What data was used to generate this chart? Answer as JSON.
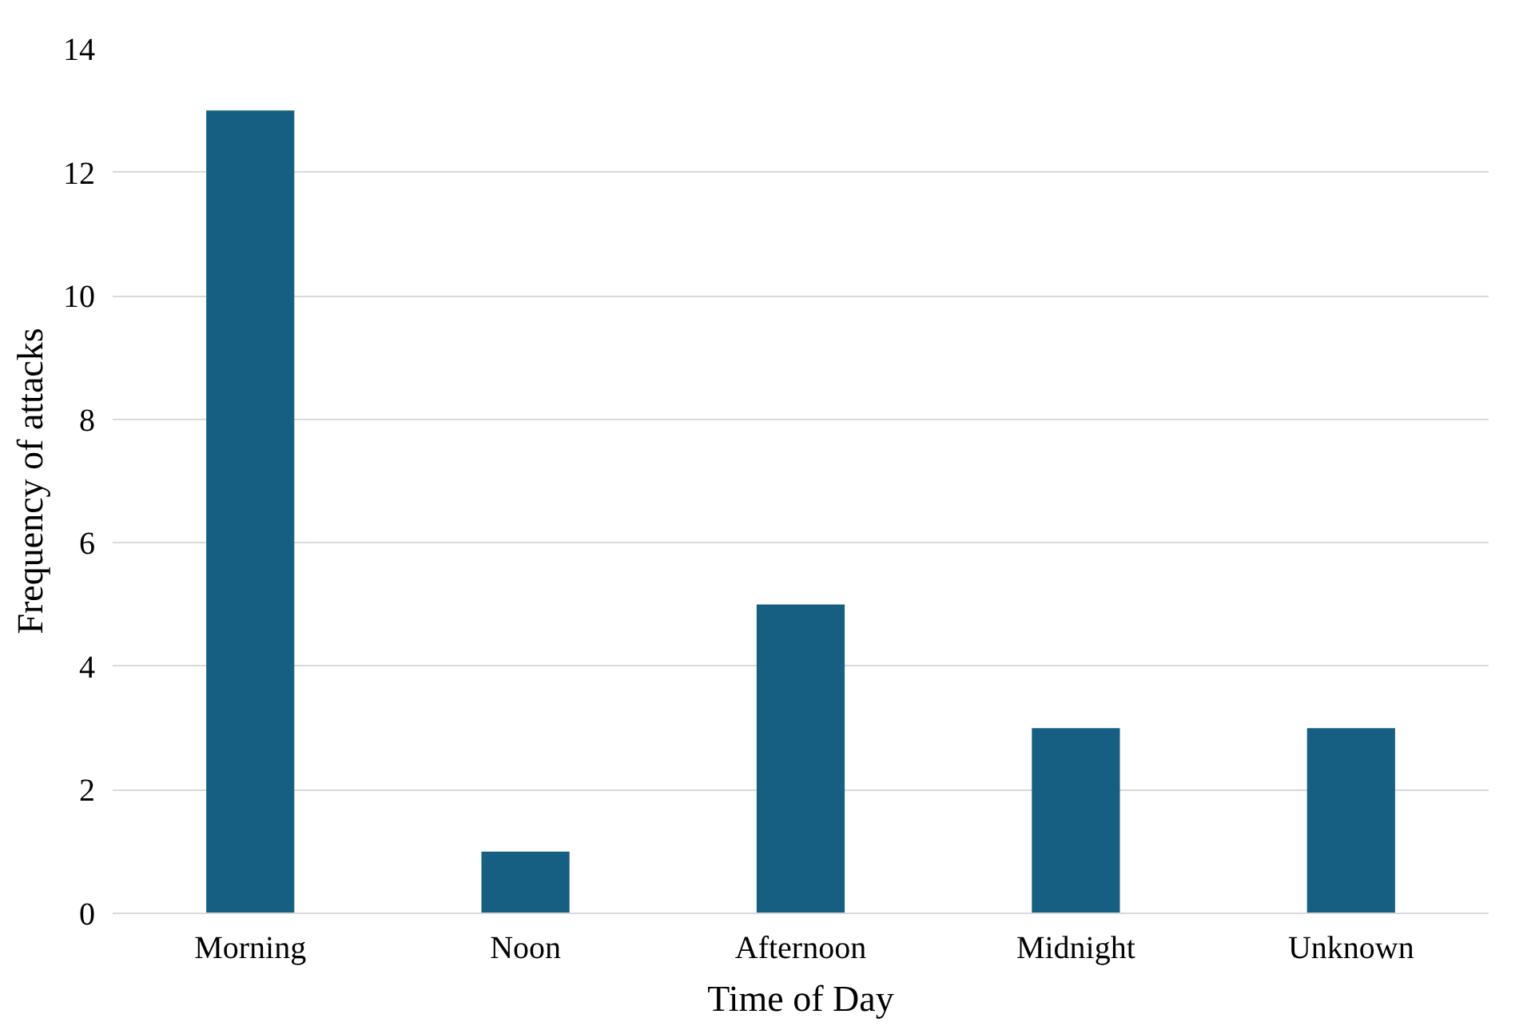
{
  "chart_data": {
    "type": "bar",
    "xlabel": "Time of Day",
    "ylabel": "Frequency of attacks",
    "categories": [
      "Morning",
      "Noon",
      "Afternoon",
      "Midnight",
      "Unknown"
    ],
    "values": [
      13,
      1,
      5,
      3,
      3
    ],
    "color": "#175f82",
    "ylim": [
      0,
      14
    ],
    "yticks": [
      0,
      2,
      4,
      6,
      8,
      10,
      12,
      14
    ],
    "grid": "y"
  }
}
